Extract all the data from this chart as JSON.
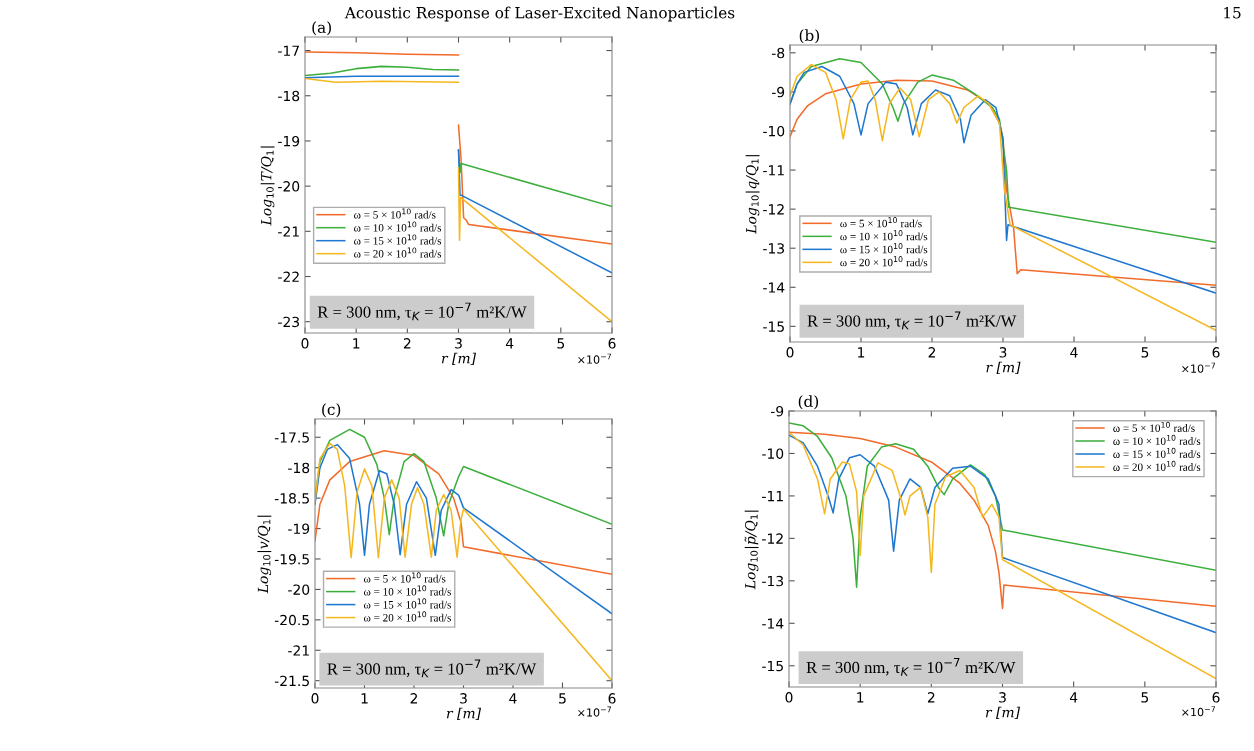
{
  "chart_data": [
    {
      "type": "line",
      "title": "(a)",
      "xlabel": "r [m]",
      "ylabel": "Log$_{10}$|T/Q$_{1}$|",
      "xlim": [
        0,
        6
      ],
      "xticks": [
        0,
        1,
        2,
        3,
        4,
        5,
        6
      ],
      "ylim": [
        -23.25,
        -16.7
      ],
      "yticks": [
        -23,
        -22,
        -21,
        -20,
        -19,
        -18,
        -17
      ],
      "legend": "left",
      "grid": false,
      "annotations": [
        "Acoustic Response of Laser-Excited Nanoparticles",
        "15",
        "×10$^{−7}$",
        "R = 300 nm, τ$_{K}$ = 10$^{−7}$ m²K/W"
      ],
      "series": [
        {
          "name": "ω = 5 × 10$^{10}$ rad/s",
          "color": "#f26b2a",
          "x": [
            0,
            1,
            2,
            3
          ],
          "values": [
            -17.03,
            -17.05,
            -17.08,
            -17.1
          ]
        },
        {
          "name": "ω = 10 × 10$^{10}$ rad/s",
          "color": "#3cae3c",
          "x": [
            0,
            0.5,
            1,
            1.5,
            2,
            2.5,
            3
          ],
          "values": [
            -17.55,
            -17.5,
            -17.4,
            -17.35,
            -17.37,
            -17.42,
            -17.43
          ]
        },
        {
          "name": "ω = 15 × 10$^{10}$ rad/s",
          "color": "#1f77d0",
          "x": [
            0,
            1,
            2,
            3
          ],
          "values": [
            -17.6,
            -17.57,
            -17.57,
            -17.57
          ]
        },
        {
          "name": "ω = 20 × 10$^{10}$ rad/s",
          "color": "#f5b71f",
          "x": [
            0,
            0.6,
            1.5,
            3
          ],
          "values": [
            -17.62,
            -17.7,
            -17.68,
            -17.7
          ]
        },
        {
          "color": "#f26b2a",
          "x": [
            3,
            3.05,
            3.1,
            3.15,
            3.2,
            6
          ],
          "values": [
            -18.65,
            -19.4,
            -20.7,
            -20.75,
            -20.85,
            -21.28
          ]
        },
        {
          "color": "#3cae3c",
          "x": [
            3,
            3.03,
            3.05,
            6
          ],
          "values": [
            -19.2,
            -19.7,
            -19.5,
            -20.45
          ]
        },
        {
          "color": "#1f77d0",
          "x": [
            3,
            3.03,
            3.05,
            6
          ],
          "values": [
            -19.2,
            -20.2,
            -20.2,
            -21.92
          ]
        },
        {
          "color": "#f5b71f",
          "x": [
            3,
            3.02,
            3.04,
            6
          ],
          "values": [
            -19.6,
            -21.2,
            -20.25,
            -23.0
          ]
        }
      ]
    },
    {
      "type": "line",
      "title": "(b)",
      "xlabel": "r [m]",
      "ylabel": "Log$_{10}$|q/Q$_{1}$|",
      "xlim": [
        0,
        6
      ],
      "xticks": [
        0,
        1,
        2,
        3,
        4,
        5,
        6
      ],
      "ylim": [
        -15.4,
        -7.8
      ],
      "yticks": [
        -15,
        -14,
        -13,
        -12,
        -11,
        -10,
        -9,
        -8
      ],
      "legend": "left",
      "grid": false,
      "annotations": [
        "×10$^{−7}$",
        "R = 300 nm, τ$_{K}$ = 10$^{−7}$ m²K/W"
      ],
      "series": [
        {
          "name": "ω = 5 × 10$^{10}$ rad/s",
          "color": "#f26b2a",
          "x": [
            0,
            0.1,
            0.25,
            0.5,
            1,
            1.5,
            2,
            2.5,
            2.8,
            2.95,
            3.0,
            3.05,
            3.15,
            3.2,
            3.25,
            6
          ],
          "values": [
            -10.15,
            -9.7,
            -9.35,
            -9.05,
            -8.8,
            -8.7,
            -8.72,
            -8.95,
            -9.3,
            -9.8,
            -10.2,
            -11.5,
            -12.5,
            -13.65,
            -13.55,
            -13.95
          ]
        },
        {
          "name": "ω = 10 × 10$^{10}$ rad/s",
          "color": "#3cae3c",
          "x": [
            0,
            0.1,
            0.3,
            0.7,
            1.0,
            1.3,
            1.45,
            1.52,
            1.6,
            1.8,
            2.0,
            2.3,
            2.6,
            2.85,
            2.95,
            3.05,
            3.08,
            6
          ],
          "values": [
            -9.3,
            -8.8,
            -8.35,
            -8.15,
            -8.25,
            -8.8,
            -9.4,
            -9.75,
            -9.3,
            -8.75,
            -8.57,
            -8.7,
            -9.05,
            -9.4,
            -9.7,
            -11.0,
            -11.95,
            -12.85
          ]
        },
        {
          "name": "ω = 15 × 10$^{10}$ rad/s",
          "color": "#1f77d0",
          "x": [
            0,
            0.1,
            0.2,
            0.45,
            0.7,
            0.9,
            1.0,
            1.1,
            1.35,
            1.5,
            1.65,
            1.73,
            1.85,
            2.05,
            2.25,
            2.4,
            2.45,
            2.55,
            2.75,
            2.9,
            3.0,
            3.03,
            3.05,
            3.07,
            6
          ],
          "values": [
            -9.32,
            -8.8,
            -8.5,
            -8.35,
            -8.6,
            -9.3,
            -10.1,
            -9.3,
            -8.75,
            -8.8,
            -9.4,
            -10.1,
            -9.3,
            -8.95,
            -9.1,
            -9.7,
            -10.3,
            -9.6,
            -9.2,
            -9.4,
            -10.2,
            -11.8,
            -12.8,
            -12.4,
            -14.15
          ]
        },
        {
          "name": "ω = 20 × 10$^{10}$ rad/s",
          "color": "#f5b71f",
          "x": [
            0,
            0.1,
            0.3,
            0.5,
            0.65,
            0.75,
            0.85,
            1.0,
            1.1,
            1.2,
            1.3,
            1.4,
            1.55,
            1.7,
            1.82,
            1.95,
            2.1,
            2.25,
            2.35,
            2.45,
            2.65,
            2.8,
            2.95,
            3.02,
            3.1,
            6
          ],
          "values": [
            -9.1,
            -8.6,
            -8.3,
            -8.5,
            -9.2,
            -10.2,
            -9.2,
            -8.75,
            -8.72,
            -9.2,
            -10.25,
            -9.3,
            -8.9,
            -9.2,
            -10.15,
            -9.2,
            -9.0,
            -9.3,
            -9.8,
            -9.4,
            -9.1,
            -9.3,
            -9.8,
            -11.5,
            -12.4,
            -15.1
          ]
        }
      ]
    },
    {
      "type": "line",
      "title": "(c)",
      "xlabel": "r [m]",
      "ylabel": "Log$_{10}$|v/Q$_{1}$|",
      "xlim": [
        0,
        6
      ],
      "xticks": [
        0,
        1,
        2,
        3,
        4,
        5,
        6
      ],
      "ylim": [
        -21.62,
        -17.2
      ],
      "yticks": [
        -21.5,
        -21,
        -20.5,
        -20,
        -19.5,
        -19,
        -18.5,
        -18,
        -17.5
      ],
      "legend": "left",
      "grid": false,
      "annotations": [
        "×10$^{−7}$",
        "R = 300 nm, τ$_{K}$ = 10$^{−7}$ m²K/W"
      ],
      "series": [
        {
          "name": "ω = 5 × 10$^{10}$ rad/s",
          "color": "#f26b2a",
          "x": [
            0,
            0.1,
            0.3,
            0.7,
            1.4,
            2,
            2.5,
            2.8,
            2.95,
            3.0,
            6
          ],
          "values": [
            -19.2,
            -18.6,
            -18.2,
            -17.9,
            -17.72,
            -17.8,
            -18.1,
            -18.5,
            -18.9,
            -19.3,
            -19.75
          ]
        },
        {
          "name": "ω = 10 × 10$^{10}$ rad/s",
          "color": "#3cae3c",
          "x": [
            0,
            0.1,
            0.3,
            0.7,
            1.0,
            1.25,
            1.4,
            1.5,
            1.6,
            1.8,
            2.0,
            2.2,
            2.45,
            2.6,
            2.7,
            2.9,
            3.0,
            6
          ],
          "values": [
            -18.5,
            -17.9,
            -17.55,
            -17.37,
            -17.5,
            -17.95,
            -18.5,
            -19.1,
            -18.5,
            -17.9,
            -17.77,
            -17.9,
            -18.5,
            -19.12,
            -18.6,
            -18.15,
            -17.98,
            -18.93
          ]
        },
        {
          "name": "ω = 15 × 10$^{10}$ rad/s",
          "color": "#1f77d0",
          "x": [
            0,
            0.1,
            0.25,
            0.45,
            0.7,
            0.9,
            1.0,
            1.1,
            1.3,
            1.45,
            1.6,
            1.72,
            1.85,
            2.05,
            2.25,
            2.43,
            2.55,
            2.75,
            2.9,
            3.0,
            6
          ],
          "values": [
            -18.6,
            -18.0,
            -17.7,
            -17.62,
            -17.85,
            -18.6,
            -19.44,
            -18.6,
            -18.05,
            -18.1,
            -18.6,
            -19.43,
            -18.6,
            -18.23,
            -18.5,
            -19.44,
            -18.7,
            -18.36,
            -18.45,
            -18.66,
            -20.4
          ]
        },
        {
          "name": "ω = 20 × 10$^{10}$ rad/s",
          "color": "#f5b71f",
          "x": [
            0,
            0.1,
            0.3,
            0.45,
            0.6,
            0.73,
            0.85,
            1.0,
            1.15,
            1.28,
            1.4,
            1.55,
            1.7,
            1.82,
            1.95,
            2.07,
            2.2,
            2.35,
            2.45,
            2.6,
            2.75,
            2.87,
            2.95,
            3.0,
            6
          ],
          "values": [
            -18.55,
            -17.85,
            -17.6,
            -17.7,
            -18.3,
            -19.48,
            -18.4,
            -18.02,
            -18.3,
            -19.48,
            -18.5,
            -18.2,
            -18.5,
            -19.47,
            -18.6,
            -18.33,
            -18.6,
            -19.47,
            -18.7,
            -18.44,
            -18.7,
            -19.47,
            -18.85,
            -18.68,
            -21.5
          ]
        }
      ]
    },
    {
      "type": "line",
      "title": "(d)",
      "xlabel": "r [m]",
      "ylabel": "Log$_{10}$|p̃/Q$_{1}$|",
      "xlim": [
        0,
        6
      ],
      "xticks": [
        0,
        1,
        2,
        3,
        4,
        5,
        6
      ],
      "ylim": [
        -15.5,
        -9
      ],
      "yticks": [
        -15,
        -14,
        -13,
        -12,
        -11,
        -10,
        -9
      ],
      "legend": "top right",
      "grid": false,
      "annotations": [
        "×10$^{−7}$",
        "R = 300 nm, τ$_{K}$ = 10$^{−7}$ m²K/W"
      ],
      "series": [
        {
          "name": "ω = 5 × 10$^{10}$ rad/s",
          "color": "#f26b2a",
          "x": [
            0,
            0.5,
            1,
            1.5,
            2,
            2.4,
            2.6,
            2.8,
            2.9,
            2.95,
            3.0,
            3.02,
            6
          ],
          "values": [
            -9.5,
            -9.55,
            -9.65,
            -9.85,
            -10.2,
            -10.7,
            -11.1,
            -11.7,
            -12.3,
            -12.8,
            -13.65,
            -13.1,
            -13.6
          ]
        },
        {
          "name": "ω = 10 × 10$^{10}$ rad/s",
          "color": "#3cae3c",
          "x": [
            0,
            0.2,
            0.4,
            0.6,
            0.8,
            0.9,
            0.95,
            1.0,
            1.1,
            1.3,
            1.5,
            1.75,
            1.95,
            2.1,
            2.18,
            2.3,
            2.55,
            2.75,
            2.9,
            3.0,
            6
          ],
          "values": [
            -9.28,
            -9.35,
            -9.6,
            -10.1,
            -11.0,
            -12.0,
            -13.15,
            -11.5,
            -10.3,
            -9.85,
            -9.77,
            -9.9,
            -10.3,
            -10.8,
            -10.97,
            -10.6,
            -10.27,
            -10.5,
            -11.0,
            -11.8,
            -12.75
          ]
        },
        {
          "name": "ω = 15 × 10$^{10}$ rad/s",
          "color": "#1f77d0",
          "x": [
            0,
            0.2,
            0.4,
            0.55,
            0.62,
            0.7,
            0.85,
            1.0,
            1.2,
            1.4,
            1.47,
            1.55,
            1.7,
            1.85,
            1.95,
            2.05,
            2.3,
            2.55,
            2.8,
            2.95,
            3.0,
            6
          ],
          "values": [
            -9.57,
            -9.75,
            -10.3,
            -11.0,
            -11.4,
            -10.6,
            -10.1,
            -10.03,
            -10.3,
            -11.1,
            -12.3,
            -11.1,
            -10.6,
            -10.8,
            -11.42,
            -10.8,
            -10.35,
            -10.3,
            -10.6,
            -11.2,
            -12.45,
            -14.22
          ]
        },
        {
          "name": "ω = 20 × 10$^{10}$ rad/s",
          "color": "#f5b71f",
          "x": [
            0,
            0.2,
            0.4,
            0.5,
            0.58,
            0.75,
            0.85,
            0.95,
            1.0,
            1.05,
            1.25,
            1.45,
            1.58,
            1.63,
            1.7,
            1.85,
            1.95,
            2.0,
            2.05,
            2.2,
            2.4,
            2.6,
            2.72,
            2.85,
            2.95,
            3.0,
            6
          ],
          "values": [
            -9.5,
            -9.8,
            -10.6,
            -11.42,
            -10.6,
            -10.2,
            -10.25,
            -10.9,
            -12.4,
            -11.0,
            -10.22,
            -10.4,
            -11.1,
            -11.45,
            -11.0,
            -10.8,
            -11.5,
            -12.8,
            -11.2,
            -10.55,
            -10.4,
            -10.8,
            -11.5,
            -11.2,
            -11.5,
            -12.5,
            -15.3
          ]
        }
      ]
    }
  ]
}
